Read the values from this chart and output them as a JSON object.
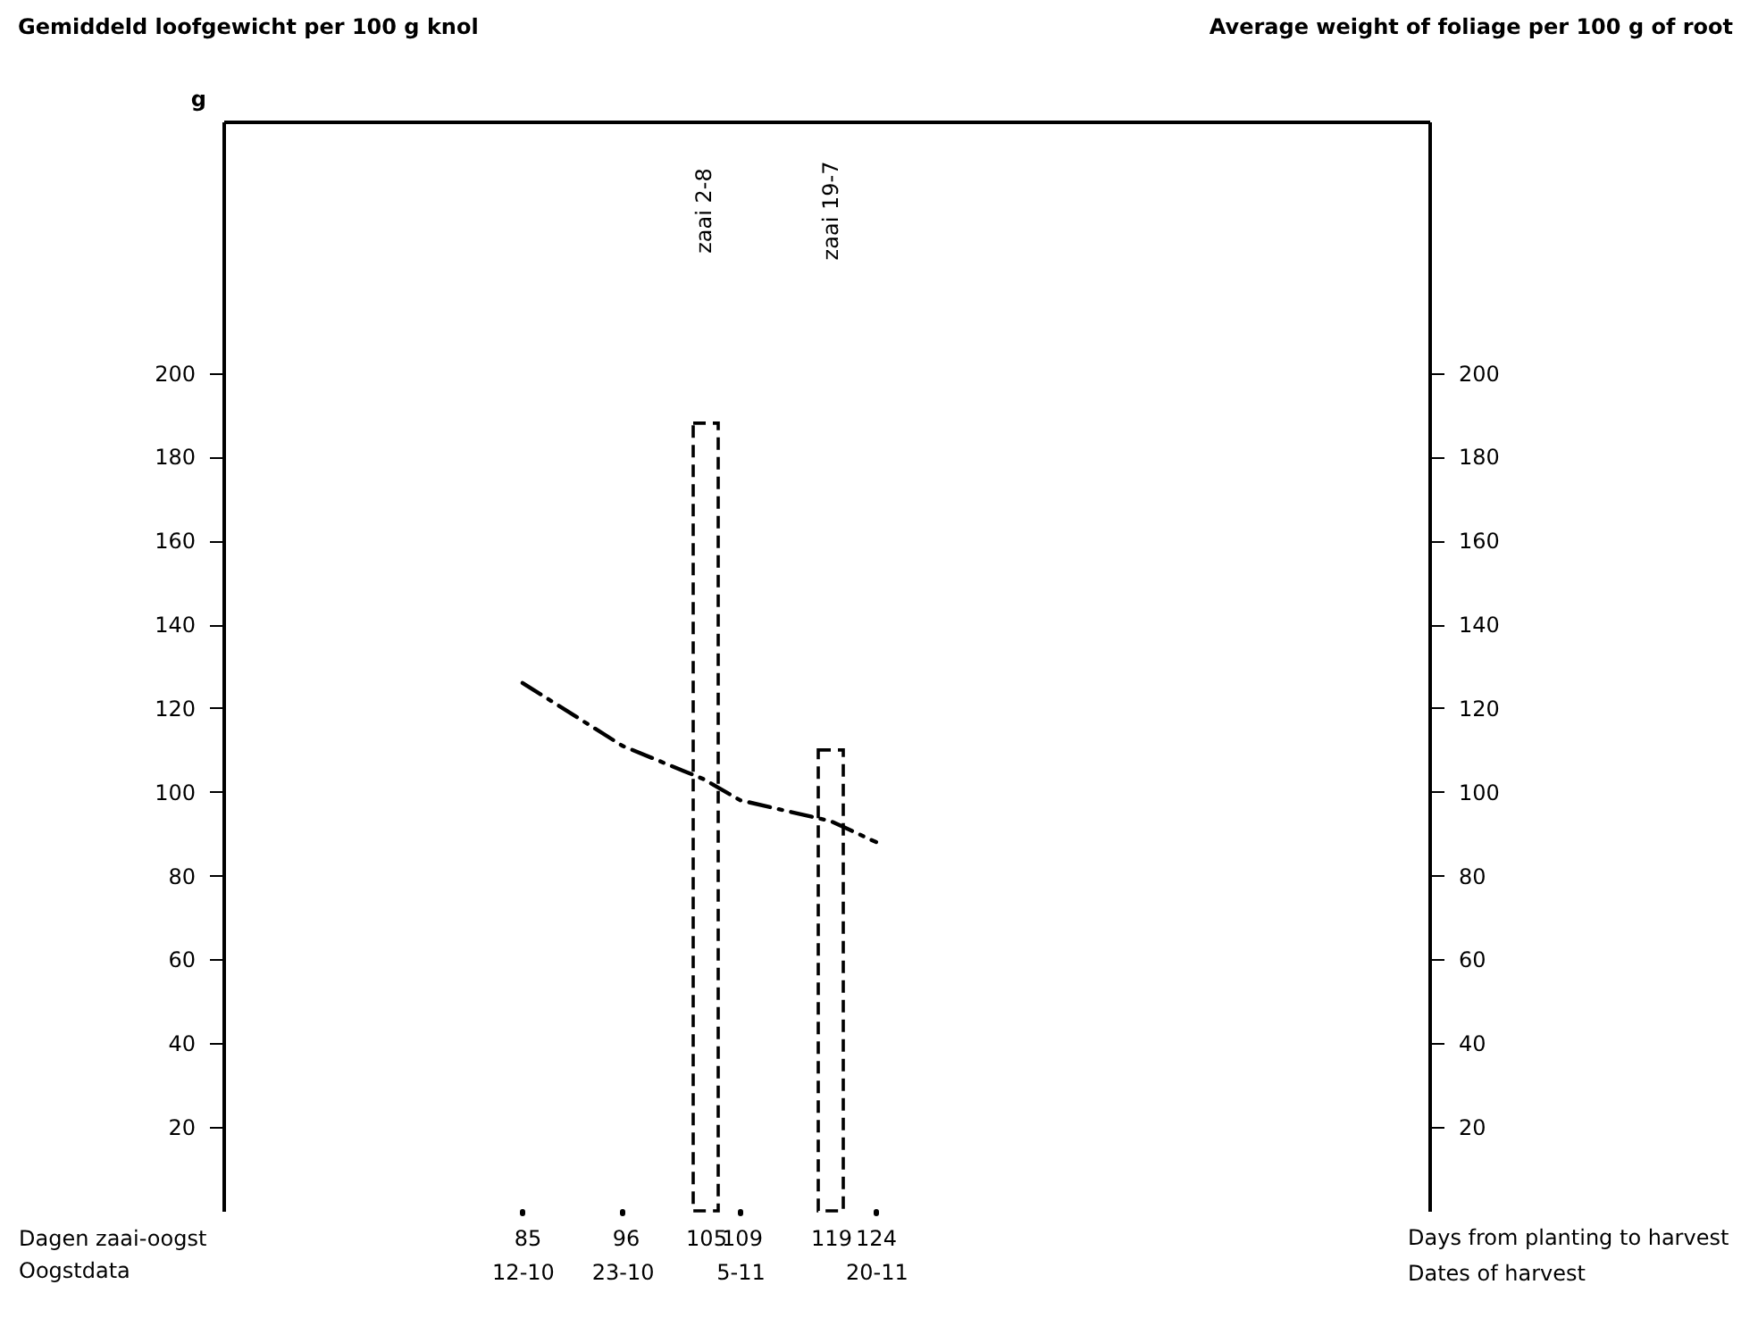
{
  "chart_data": {
    "type": "line",
    "title": "Gemiddeld loofgewicht per 100 g knol",
    "ylabel": "g",
    "xlabel": "Dagen zaai-oogst",
    "x2label": "Oogstdata",
    "xlim": [
      52,
      185
    ],
    "xticks": [
      85,
      96,
      105,
      109,
      119,
      124
    ],
    "x2lim": [
      "--09-09",
      "--11-20"
    ],
    "x2ticks": [
      {
        "value": "--10-12",
        "label": "12-10"
      },
      {
        "value": "--10-23",
        "label": "23-10"
      },
      {
        "value": "--11-05",
        "label": "5-11"
      },
      {
        "value": "--11-20",
        "label": "20-11"
      }
    ],
    "ylim": [
      0,
      260
    ],
    "yticks": [
      20,
      40,
      60,
      80,
      100,
      120,
      140,
      160,
      180,
      200
    ],
    "y2lim": [
      0,
      260
    ],
    "y2ticks": [
      20,
      40,
      60,
      80,
      100,
      120,
      140,
      160,
      180,
      200
    ],
    "grid": false,
    "marker": "none",
    "series": [
      {
        "color": "#000000",
        "line_style": "dashdot",
        "x": [
          85,
          96,
          105,
          109,
          119,
          124
        ],
        "values": [
          126,
          111,
          103,
          98,
          93,
          88
        ]
      },
      {
        "type": "bar",
        "color": "#000000",
        "line_style": "dashed",
        "x": [
          105,
          119
        ],
        "values": [
          188,
          110
        ]
      }
    ],
    "annotations": [
      "Average weight of foliage per 100 g of root",
      "Days from planting to harvest",
      "Dates of harvest",
      "zaai 2-8",
      "zaai 19-7"
    ]
  }
}
